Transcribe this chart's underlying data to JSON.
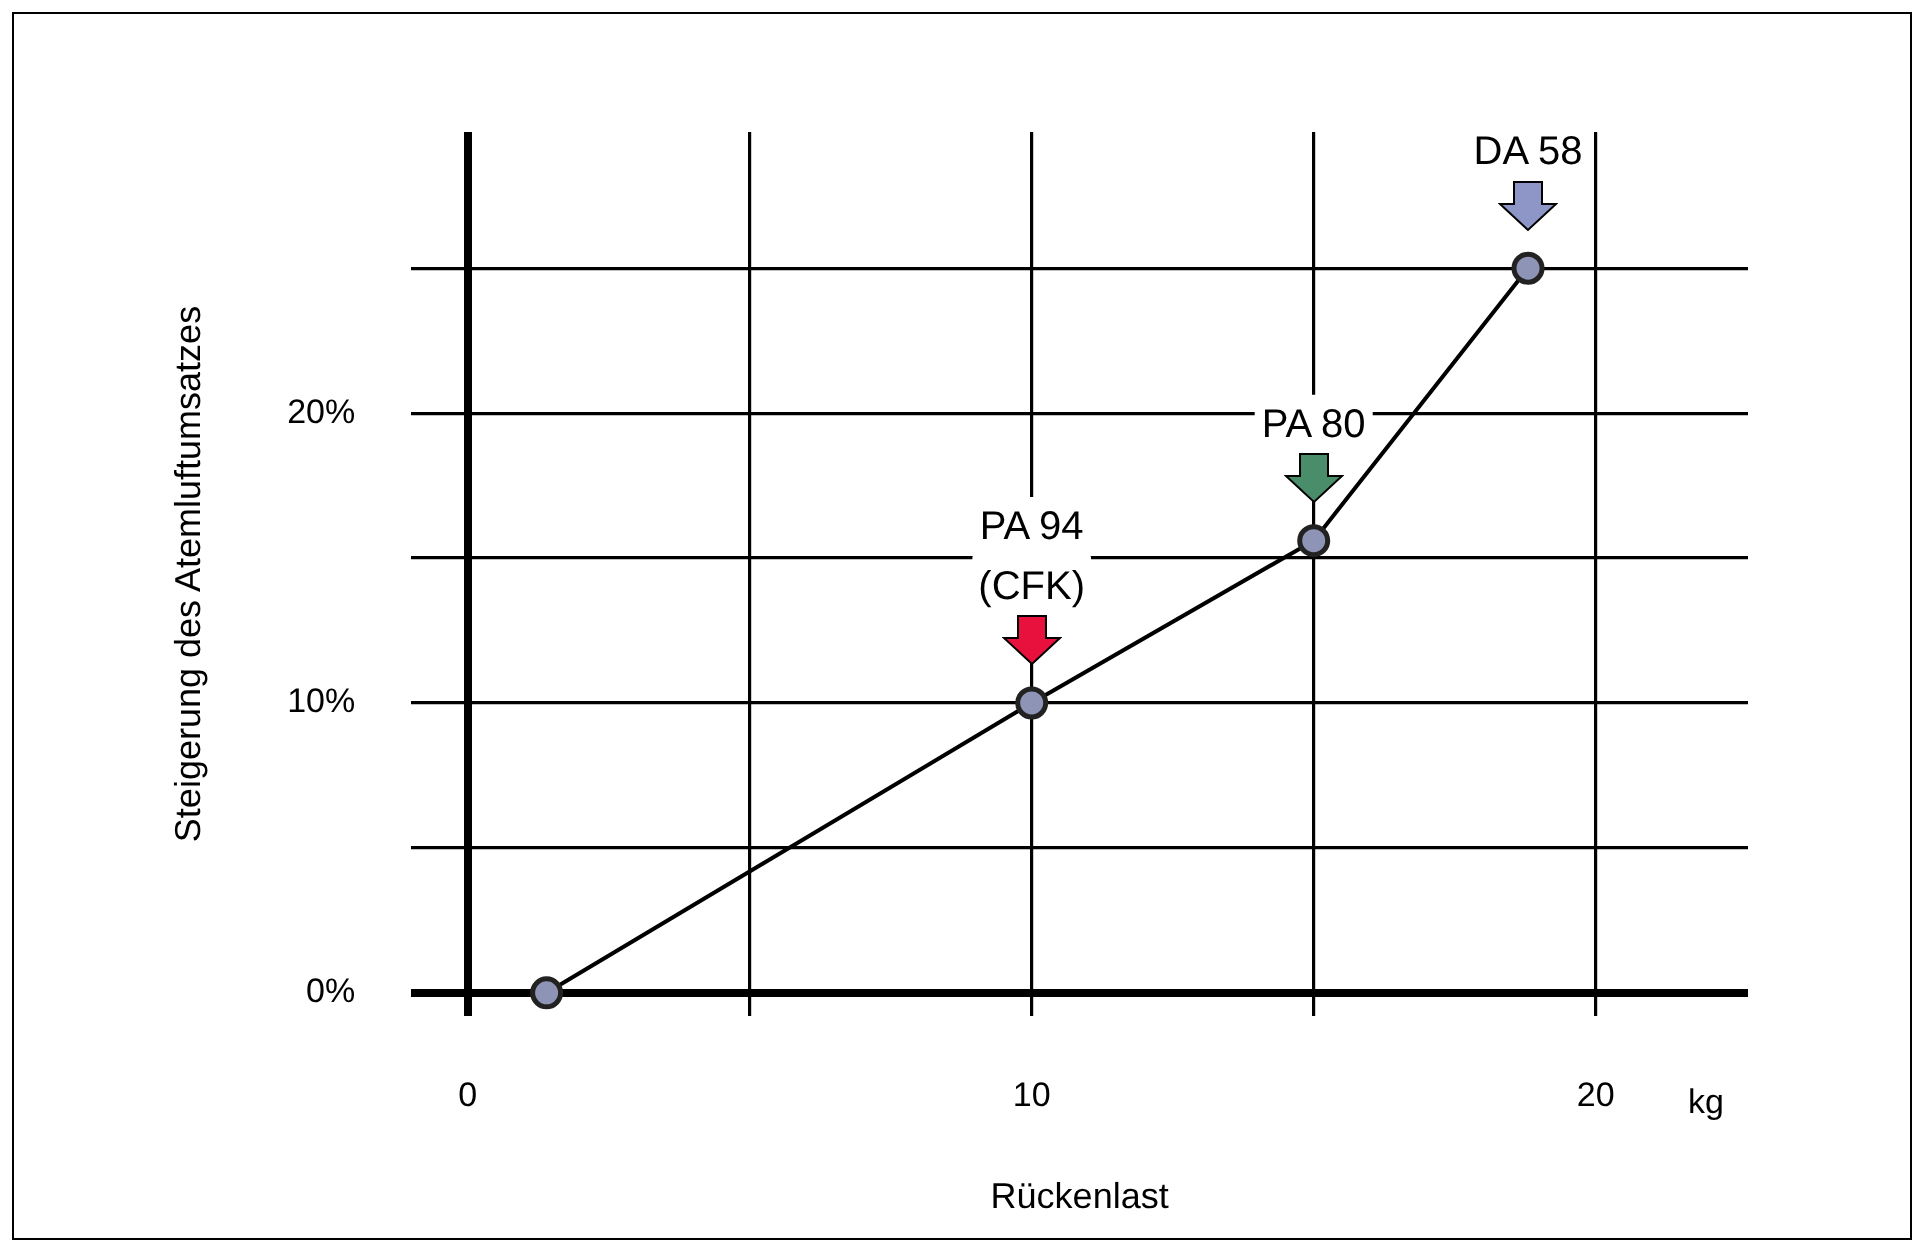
{
  "chart_data": {
    "type": "line",
    "xlabel": "Rückenlast",
    "ylabel": "Steigerung des Atemluftumsatzes",
    "x": [
      1.4,
      10,
      15,
      18.8
    ],
    "series": [
      {
        "color": "#000000",
        "values": [
          0,
          10,
          15.6,
          25
        ]
      }
    ],
    "xlim": [
      -1,
      22.7
    ],
    "xticks": [
      0,
      {
        "value": 5,
        "label": null
      },
      10,
      {
        "value": 15,
        "label": null
      },
      20
    ],
    "ylim": [
      -0.8,
      29.7
    ],
    "yticks": [
      {
        "value": 0,
        "label": "0%"
      },
      {
        "value": 5,
        "label": null
      },
      {
        "value": 10,
        "label": "10%"
      },
      {
        "value": 15,
        "label": null
      },
      {
        "value": 20,
        "label": "20%"
      },
      {
        "value": 25,
        "label": null
      }
    ],
    "grid": true,
    "marker": "circle",
    "legend": false,
    "annotations": [
      {
        "text": "PA 94\n(CFK)",
        "x": 10,
        "y": 10
      },
      {
        "text": "PA 80",
        "x": 15,
        "y": 15.6
      },
      {
        "text": "DA 58",
        "x": 18.8,
        "y": 25
      },
      "kg"
    ]
  }
}
